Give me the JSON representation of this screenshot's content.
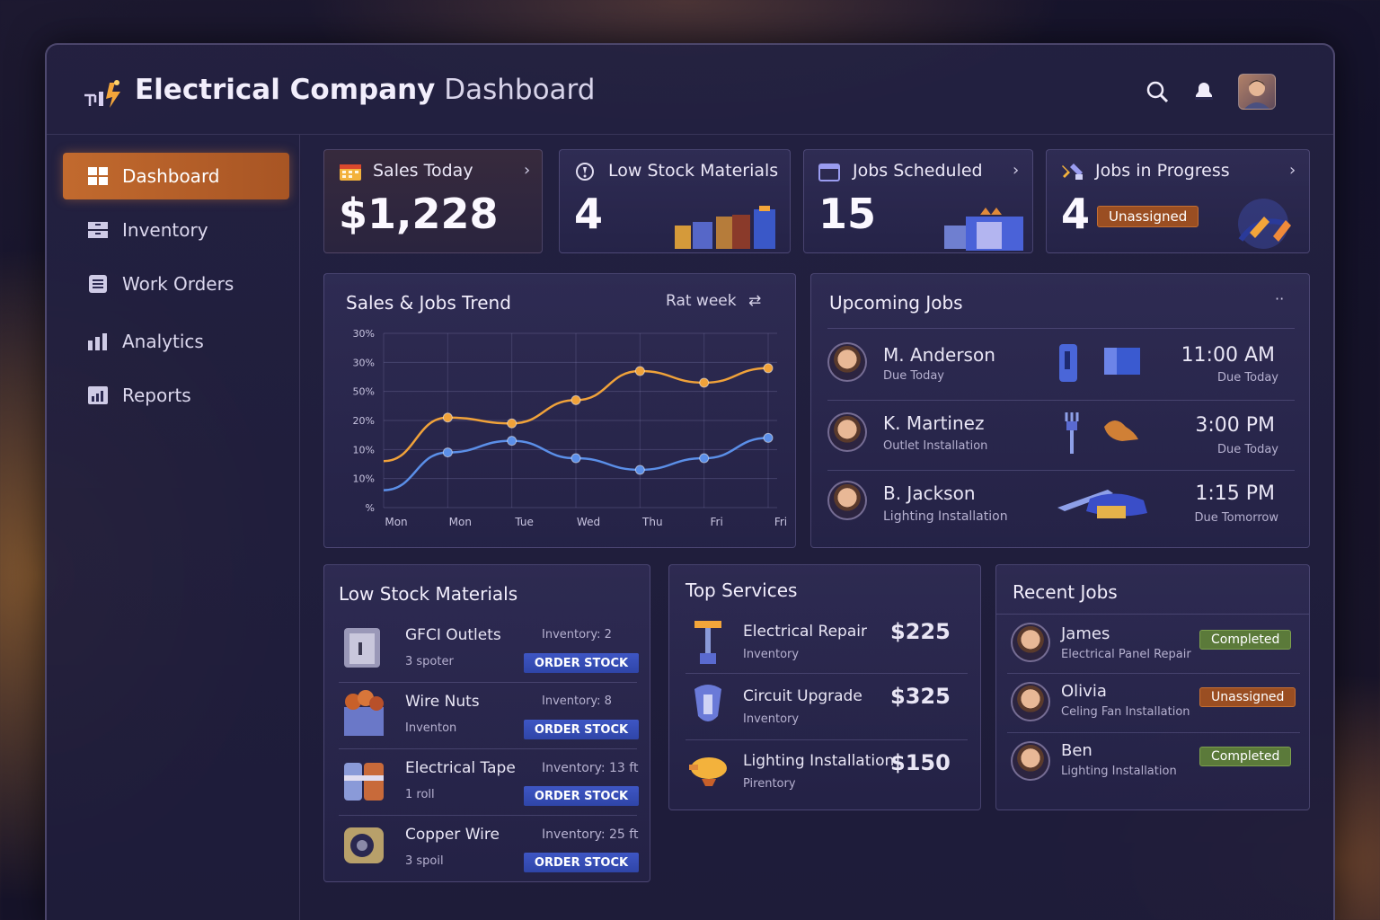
{
  "app": {
    "title_bold": "Electrical Company",
    "title_light": "Dashboard"
  },
  "topbar": {
    "icons": [
      "search-icon",
      "notification-icon",
      "user-avatar"
    ]
  },
  "sidebar": {
    "items": [
      {
        "label": "Dashboard",
        "icon": "grid-icon",
        "active": true
      },
      {
        "label": "Inventory",
        "icon": "inventory-icon",
        "active": false
      },
      {
        "label": "Work Orders",
        "icon": "list-icon",
        "active": false
      },
      {
        "label": "Analytics",
        "icon": "analytics-icon",
        "active": false
      },
      {
        "label": "Reports",
        "icon": "bar-chart-icon",
        "active": false
      }
    ]
  },
  "stats": [
    {
      "title": "Sales Today",
      "value": "$1,228",
      "icon": "calendar-icon"
    },
    {
      "title": "Low Stock Materials",
      "value": "4",
      "icon": "warning-icon"
    },
    {
      "title": "Jobs Scheduled",
      "value": "15",
      "icon": "calendar-check-icon"
    },
    {
      "title": "Jobs in Progress",
      "value": "4",
      "icon": "tools-icon",
      "badge": "Unassigned"
    }
  ],
  "trend": {
    "title": "Sales & Jobs Trend",
    "range_label": "Rat week"
  },
  "chart_data": {
    "type": "line",
    "title": "Sales & Jobs Trend",
    "categories": [
      "Mon",
      "Mon",
      "Tue",
      "Wed",
      "Thu",
      "Fri",
      "Fri"
    ],
    "y_tick_labels": [
      "30%",
      "30%",
      "50%",
      "20%",
      "10%",
      "10%",
      "%"
    ],
    "ylim": [
      0,
      6
    ],
    "grid": true,
    "series": [
      {
        "color": "#f0a23a",
        "values": [
          1.6,
          3.1,
          2.9,
          3.7,
          4.7,
          4.3,
          4.8
        ]
      },
      {
        "color": "#5b8fe8",
        "values": [
          0.6,
          1.9,
          2.3,
          1.7,
          1.3,
          1.7,
          2.4
        ]
      }
    ]
  },
  "upcoming": {
    "title": "Upcoming Jobs",
    "jobs": [
      {
        "name": "M. Anderson",
        "sub": "Due Today",
        "time": "11:00 AM",
        "due": "Due Today"
      },
      {
        "name": "K. Martinez",
        "sub": "Outlet Installation",
        "time": "3:00 PM",
        "due": "Due Today"
      },
      {
        "name": "B. Jackson",
        "sub": "Lighting Installation",
        "time": "1:15 PM",
        "due": "Due Tomorrow"
      }
    ]
  },
  "low_stock": {
    "title": "Low Stock Materials",
    "button_label": "ORDER STOCK",
    "items": [
      {
        "name": "GFCI Outlets",
        "inventory": "Inventory: 2",
        "sub": "3 spoter"
      },
      {
        "name": "Wire Nuts",
        "inventory": "Inventory: 8",
        "sub": "Inventon"
      },
      {
        "name": "Electrical Tape",
        "inventory": "Inventory: 13 ft",
        "sub": "1 roll"
      },
      {
        "name": "Copper Wire",
        "inventory": "Inventory: 25 ft",
        "sub": "3 spoil"
      }
    ]
  },
  "top_services": {
    "title": "Top Services",
    "items": [
      {
        "name": "Electrical Repair",
        "sub": "Inventory",
        "price": "$225"
      },
      {
        "name": "Circuit Upgrade",
        "sub": "Inventory",
        "price": "$325"
      },
      {
        "name": "Lighting Installation",
        "sub": "Pirentory",
        "price": "$150"
      }
    ]
  },
  "recent_jobs": {
    "title": "Recent Jobs",
    "items": [
      {
        "name": "James",
        "sub": "Electrical Panel Repair",
        "status": "Completed",
        "status_color": "green"
      },
      {
        "name": "Olivia",
        "sub": "Celing Fan Installation",
        "status": "Unassigned",
        "status_color": "orange"
      },
      {
        "name": "Ben",
        "sub": "Lighting Installation",
        "status": "Completed",
        "status_color": "green"
      }
    ]
  }
}
